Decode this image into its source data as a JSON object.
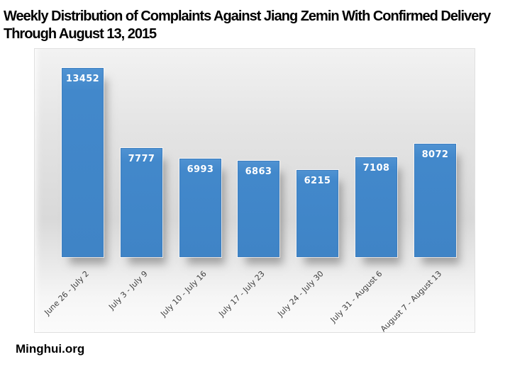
{
  "header": {
    "title_line1": "Weekly Distribution of Complaints Against Jiang Zemin With Confirmed Delivery",
    "title_line2": "Through August 13, 2015"
  },
  "footer": {
    "source": "Minghui.org"
  },
  "colors": {
    "bar_fill": "#4288cb",
    "bar_border": "#3c7ec0",
    "value_label": "#ffffff",
    "axis_label": "#404040",
    "title": "#000000",
    "plot_bg_mid": "#d9d9d9"
  },
  "chart_data": {
    "type": "bar",
    "title": "Weekly Distribution of Complaints Against Jiang Zemin With Confirmed Delivery Through August 13, 2015",
    "categories": [
      "June 26 - July 2",
      "July 3 - July 9",
      "July 10 - July 16",
      "July 17 - July 23",
      "July 24 - July 30",
      "July 31 - August 6",
      "August 7 - August 13"
    ],
    "values": [
      13452,
      7777,
      6993,
      6863,
      6215,
      7108,
      8072
    ],
    "xlabel": "",
    "ylabel": "",
    "ylim": [
      0,
      14800
    ],
    "y_axis_visible": false,
    "grid": false,
    "legend": "none",
    "data_labels": "inside-end",
    "x_label_rotation_deg": -45
  }
}
